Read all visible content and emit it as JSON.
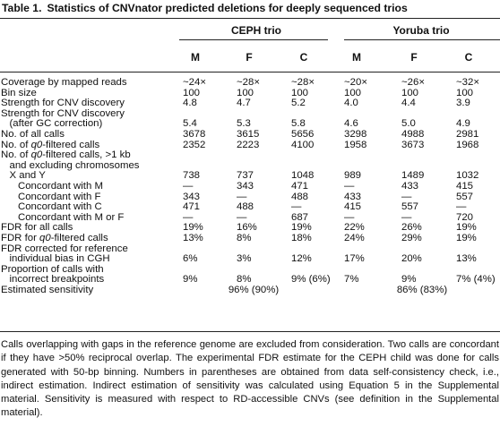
{
  "title": {
    "label": "Table 1.",
    "text": "Statistics of CNVnator predicted deletions for deeply sequenced trios"
  },
  "groups": [
    "CEPH trio",
    "Yoruba trio"
  ],
  "columns": [
    "M",
    "F",
    "C",
    "M",
    "F",
    "C"
  ],
  "rows": [
    {
      "label": [
        "Coverage by mapped reads"
      ],
      "values": [
        "~24×",
        "~28×",
        "~28×",
        "~20×",
        "~26×",
        "~32×"
      ]
    },
    {
      "label": [
        "Bin size"
      ],
      "values": [
        "100",
        "100",
        "100",
        "100",
        "100",
        "100"
      ]
    },
    {
      "label": [
        "Strength for CNV discovery"
      ],
      "values": [
        "4.8",
        "4.7",
        "5.2",
        "4.0",
        "4.4",
        "3.9"
      ]
    },
    {
      "label": [
        "Strength for CNV discovery",
        "   (after GC correction)"
      ],
      "values": [
        "5.4",
        "5.3",
        "5.8",
        "4.6",
        "5.0",
        "4.9"
      ]
    },
    {
      "label": [
        "No. of all calls"
      ],
      "values": [
        "3678",
        "3615",
        "5656",
        "3298",
        "4988",
        "2981"
      ]
    },
    {
      "label": [
        "No. of q0-filtered calls"
      ],
      "values": [
        "2352",
        "2223",
        "4100",
        "1958",
        "3673",
        "1968"
      ]
    },
    {
      "label": [
        "No. of q0-filtered calls, >1 kb",
        "   and excluding chromosomes",
        "   X and Y"
      ],
      "values": [
        "738",
        "737",
        "1048",
        "989",
        "1489",
        "1032"
      ]
    },
    {
      "label": [
        "      Concordant with M"
      ],
      "values": [
        "—",
        "343",
        "471",
        "—",
        "433",
        "415"
      ]
    },
    {
      "label": [
        "      Concordant with F"
      ],
      "values": [
        "343",
        "—",
        "488",
        "433",
        "—",
        "557"
      ]
    },
    {
      "label": [
        "      Concordant with C"
      ],
      "values": [
        "471",
        "488",
        "—",
        "415",
        "557",
        "—"
      ]
    },
    {
      "label": [
        "      Concordant with M or F"
      ],
      "values": [
        "—",
        "—",
        "687",
        "—",
        "—",
        "720"
      ]
    },
    {
      "label": [
        "FDR for all calls"
      ],
      "values": [
        "19%",
        "16%",
        "19%",
        "22%",
        "26%",
        "19%"
      ]
    },
    {
      "label": [
        "FDR for q0-filtered calls"
      ],
      "values": [
        "13%",
        "8%",
        "18%",
        "24%",
        "29%",
        "19%"
      ]
    },
    {
      "label": [
        "FDR corrected for reference",
        "   individual bias in CGH"
      ],
      "values": [
        "6%",
        "3%",
        "12%",
        "17%",
        "20%",
        "13%"
      ]
    },
    {
      "label": [
        "Proportion of calls with",
        "   incorrect breakpoints"
      ],
      "values": [
        "9%",
        "8%",
        "9% (6%)",
        "7%",
        "9%",
        "7% (4%)"
      ]
    },
    {
      "label": [
        "Estimated sensitivity"
      ],
      "spans": [
        "96% (90%)",
        "86% (83%)"
      ]
    }
  ],
  "footnote": "Calls overlapping with gaps in the reference genome are excluded from consideration. Two calls are concordant if they have >50% reciprocal overlap. The experimental FDR estimate for the CEPH child was done for calls generated with 50-bp binning. Numbers in parentheses are obtained from data self-consistency check, i.e., indirect estimation. Indirect estimation of sensitivity was calculated using Equation 5 in the Supplemental material. Sensitivity is measured with respect to RD-accessible CNVs (see definition in the Supplemental material)."
}
